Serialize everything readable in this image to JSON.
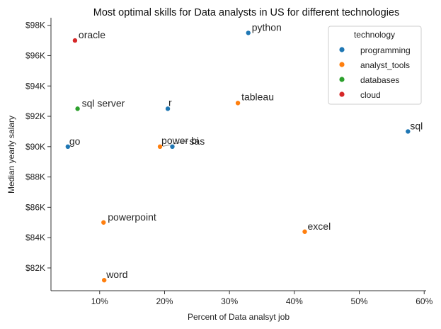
{
  "chart_data": {
    "type": "scatter",
    "title": "Most optimal skills for Data analysts in US for different technologies",
    "xlabel": "Percent of Data analsyt job",
    "ylabel": "Median yearly salary",
    "xlim": [
      2.5,
      60.3
    ],
    "ylim": [
      80500,
      98500
    ],
    "x_ticks": [
      10,
      20,
      30,
      40,
      50,
      60
    ],
    "x_tick_labels": [
      "10%",
      "20%",
      "30%",
      "40%",
      "50%",
      "60%"
    ],
    "y_ticks": [
      82000,
      84000,
      86000,
      88000,
      90000,
      92000,
      94000,
      96000,
      98000
    ],
    "y_tick_labels": [
      "$82K",
      "$84K",
      "$86K",
      "$88K",
      "$90K",
      "$92K",
      "$94K",
      "$96K",
      "$98K"
    ],
    "grid": false,
    "legend": {
      "title": "technology",
      "placement": "top-right",
      "entries": [
        {
          "name": "programming",
          "color": "#1f77b4"
        },
        {
          "name": "analyst_tools",
          "color": "#ff7f0e"
        },
        {
          "name": "databases",
          "color": "#2ca02c"
        },
        {
          "name": "cloud",
          "color": "#d62728"
        }
      ]
    },
    "points": [
      {
        "skill": "python",
        "x": 32.9,
        "y": 97500,
        "technology": "programming"
      },
      {
        "skill": "oracle",
        "x": 6.2,
        "y": 97000,
        "technology": "cloud"
      },
      {
        "skill": "tableau",
        "x": 31.3,
        "y": 92875,
        "technology": "analyst_tools"
      },
      {
        "skill": "r",
        "x": 20.5,
        "y": 92500,
        "technology": "programming"
      },
      {
        "skill": "sql server",
        "x": 6.6,
        "y": 92500,
        "technology": "databases"
      },
      {
        "skill": "sql",
        "x": 57.5,
        "y": 91000,
        "technology": "programming"
      },
      {
        "skill": "go",
        "x": 5.1,
        "y": 90000,
        "technology": "programming"
      },
      {
        "skill": "power bi",
        "x": 19.3,
        "y": 90000,
        "technology": "analyst_tools"
      },
      {
        "skill": "sas",
        "x": 21.2,
        "y": 90000,
        "technology": "programming"
      },
      {
        "skill": "excel",
        "x": 41.6,
        "y": 84392,
        "technology": "analyst_tools"
      },
      {
        "skill": "powerpoint",
        "x": 10.6,
        "y": 85000,
        "technology": "analyst_tools"
      },
      {
        "skill": "word",
        "x": 10.7,
        "y": 81194,
        "technology": "analyst_tools"
      }
    ]
  }
}
